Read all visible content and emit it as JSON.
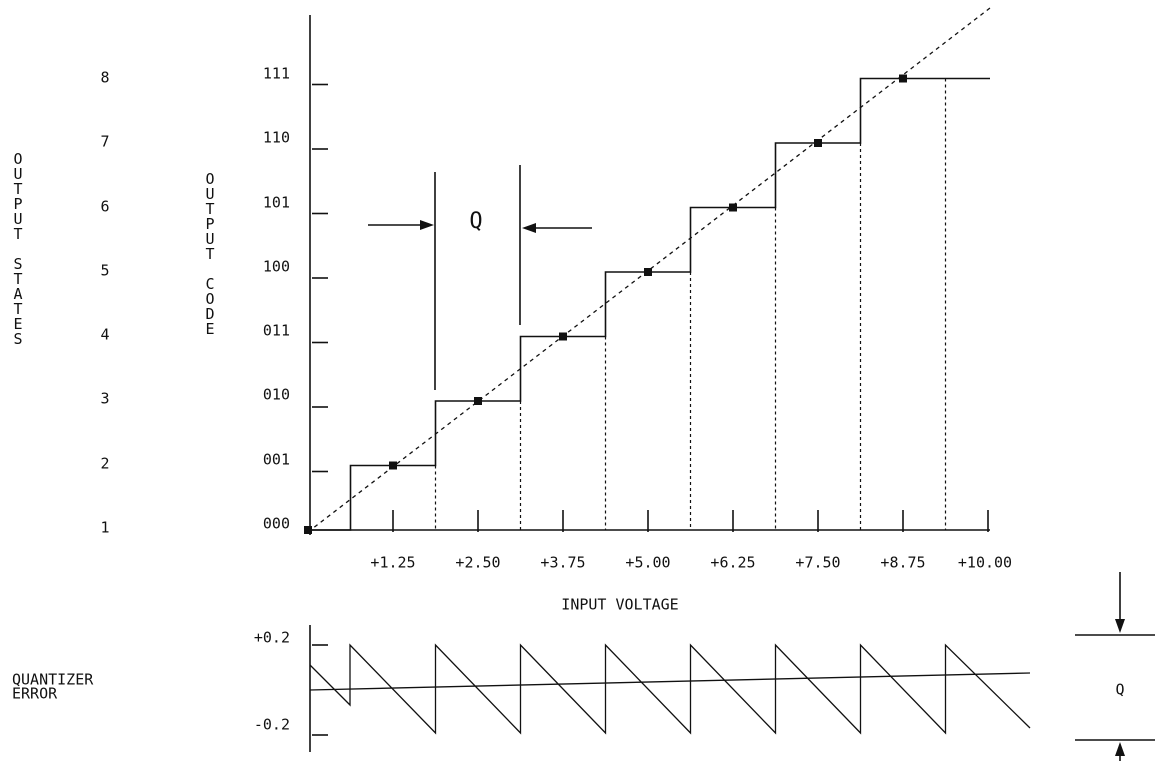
{
  "output_states": {
    "label": "OUTPUT STATES",
    "values": [
      "1",
      "2",
      "3",
      "4",
      "5",
      "6",
      "7",
      "8"
    ]
  },
  "output_code": {
    "label": "OUTPUT CODE",
    "codes": [
      "000",
      "001",
      "010",
      "011",
      "100",
      "101",
      "110",
      "111"
    ]
  },
  "input_voltage": {
    "label": "INPUT VOLTAGE",
    "ticks": [
      "+1.25",
      "+2.50",
      "+3.75",
      "+5.00",
      "+6.25",
      "+7.50",
      "+8.75",
      "+10.00"
    ]
  },
  "quantizer_error": {
    "label_lines": [
      "QUANTIZER",
      "ERROR"
    ],
    "ticks": [
      "+0.2",
      "-0.2"
    ]
  },
  "q_labels": [
    "Q",
    "Q"
  ]
}
